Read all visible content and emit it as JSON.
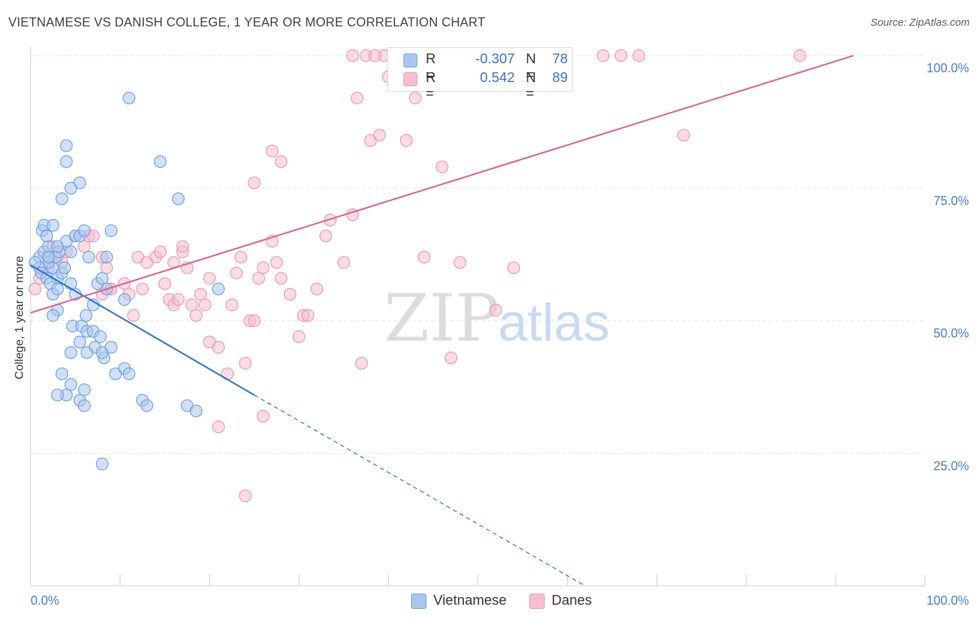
{
  "title": "VIETNAMESE VS DANISH COLLEGE, 1 YEAR OR MORE CORRELATION CHART",
  "source": "Source: ZipAtlas.com",
  "watermark": {
    "zip": "ZIP",
    "atlas": "atlas"
  },
  "colors": {
    "vietnamese_fill": "#a9c6ef",
    "vietnamese_stroke": "#6b9fe0",
    "vietnamese_line": "#2f6fd0",
    "danes_fill": "#f6bfd0",
    "danes_stroke": "#ec94b0",
    "danes_line": "#e0608a",
    "axis_label": "#4a7bd0",
    "grid": "#e3e3e3"
  },
  "legend": {
    "rows": [
      {
        "r_label": "R =",
        "r_value": "-0.307",
        "n_label": "N =",
        "n_value": "78"
      },
      {
        "r_label": "R =",
        "r_value": "0.542",
        "n_label": "N =",
        "n_value": "89"
      }
    ]
  },
  "bottom_legend": {
    "vietnamese": "Vietnamese",
    "danes": "Danes"
  },
  "chart_data": {
    "type": "scatter",
    "title": "VIETNAMESE VS DANISH COLLEGE, 1 YEAR OR MORE CORRELATION CHART",
    "xlabel": "",
    "ylabel": "College, 1 year or more",
    "xlim": [
      0,
      100
    ],
    "ylim": [
      0,
      100
    ],
    "x_tick_labels": [
      "0.0%",
      "100.0%"
    ],
    "y_tick_labels": [
      "25.0%",
      "50.0%",
      "75.0%",
      "100.0%"
    ],
    "y_ticks": [
      25,
      50,
      75,
      100
    ],
    "series": [
      {
        "name": "Vietnamese",
        "r": -0.307,
        "n": 78,
        "trend": {
          "x0": 0,
          "y0": 60.5,
          "x1": 25,
          "y1": 36.0,
          "dash_to_x": 62,
          "dash_to_y": 0
        },
        "points": [
          [
            2.5,
            60
          ],
          [
            3,
            58
          ],
          [
            3.5,
            59
          ],
          [
            2,
            61
          ],
          [
            1,
            62
          ],
          [
            1.5,
            63
          ],
          [
            2,
            64
          ],
          [
            1,
            60
          ],
          [
            0.5,
            61
          ],
          [
            1.2,
            59
          ],
          [
            2.8,
            62
          ],
          [
            3.2,
            63
          ],
          [
            4,
            65
          ],
          [
            5,
            66
          ],
          [
            5.5,
            66
          ],
          [
            6,
            67
          ],
          [
            4.5,
            63
          ],
          [
            1.8,
            58
          ],
          [
            2.2,
            57
          ],
          [
            1.3,
            67
          ],
          [
            1.5,
            68
          ],
          [
            2.5,
            68
          ],
          [
            3,
            64
          ],
          [
            3.8,
            60
          ],
          [
            6.5,
            62
          ],
          [
            8.5,
            56
          ],
          [
            10.5,
            54
          ],
          [
            4.5,
            57
          ],
          [
            7,
            53
          ],
          [
            6.2,
            51
          ],
          [
            4.7,
            49
          ],
          [
            5.7,
            49
          ],
          [
            6.3,
            48
          ],
          [
            7,
            48
          ],
          [
            7.8,
            47
          ],
          [
            5.5,
            46
          ],
          [
            7.2,
            45
          ],
          [
            4.5,
            44
          ],
          [
            6.3,
            44
          ],
          [
            8.2,
            43
          ],
          [
            8,
            44
          ],
          [
            9,
            45
          ],
          [
            3,
            52
          ],
          [
            2.5,
            51
          ],
          [
            2.5,
            55
          ],
          [
            5,
            55
          ],
          [
            9.5,
            40
          ],
          [
            10.5,
            41
          ],
          [
            11,
            40
          ],
          [
            3.5,
            40
          ],
          [
            4.5,
            38
          ],
          [
            6,
            37
          ],
          [
            4,
            36
          ],
          [
            3,
            36
          ],
          [
            5.5,
            35
          ],
          [
            6,
            34
          ],
          [
            12.5,
            35
          ],
          [
            13,
            34
          ],
          [
            17.5,
            34
          ],
          [
            18.5,
            33
          ],
          [
            8,
            23
          ],
          [
            5.5,
            76
          ],
          [
            4,
            83
          ],
          [
            4.5,
            75
          ],
          [
            3.5,
            73
          ],
          [
            4,
            80
          ],
          [
            11,
            92
          ],
          [
            14.5,
            80
          ],
          [
            16.5,
            73
          ],
          [
            21,
            56
          ],
          [
            7.5,
            57
          ],
          [
            8,
            58
          ],
          [
            9,
            67
          ],
          [
            2,
            62
          ],
          [
            1.8,
            66
          ],
          [
            3,
            56
          ],
          [
            2,
            62
          ],
          [
            8.5,
            62
          ]
        ]
      },
      {
        "name": "Danes",
        "r": 0.542,
        "n": 89,
        "trend": {
          "x0": 0,
          "y0": 51.5,
          "x1": 92,
          "y1": 100
        },
        "points": [
          [
            0.5,
            56
          ],
          [
            1,
            58
          ],
          [
            2,
            60
          ],
          [
            3,
            62
          ],
          [
            2.5,
            64
          ],
          [
            3.5,
            61
          ],
          [
            4,
            63
          ],
          [
            5,
            66
          ],
          [
            6,
            64
          ],
          [
            6.5,
            66
          ],
          [
            7,
            66
          ],
          [
            8,
            62
          ],
          [
            8.5,
            60
          ],
          [
            9,
            56
          ],
          [
            10.5,
            57
          ],
          [
            11,
            55
          ],
          [
            11.5,
            51
          ],
          [
            12,
            62
          ],
          [
            12.5,
            56
          ],
          [
            13,
            61
          ],
          [
            14,
            62
          ],
          [
            14.5,
            63
          ],
          [
            15,
            57
          ],
          [
            15.5,
            54
          ],
          [
            16,
            53
          ],
          [
            16.5,
            54
          ],
          [
            17,
            63
          ],
          [
            17.5,
            60
          ],
          [
            18,
            53
          ],
          [
            18.5,
            51
          ],
          [
            19,
            55
          ],
          [
            19.5,
            53
          ],
          [
            20,
            46
          ],
          [
            21,
            45
          ],
          [
            22,
            40
          ],
          [
            22.5,
            53
          ],
          [
            23,
            59
          ],
          [
            23.5,
            62
          ],
          [
            24,
            42
          ],
          [
            24.5,
            50
          ],
          [
            25,
            50
          ],
          [
            25.5,
            58
          ],
          [
            26,
            60
          ],
          [
            27,
            65
          ],
          [
            27.5,
            61
          ],
          [
            28,
            58
          ],
          [
            29,
            55
          ],
          [
            30,
            47
          ],
          [
            30.5,
            51
          ],
          [
            31,
            51
          ],
          [
            32,
            56
          ],
          [
            33,
            66
          ],
          [
            33.5,
            69
          ],
          [
            35,
            61
          ],
          [
            36,
            70
          ],
          [
            37,
            42
          ],
          [
            38,
            84
          ],
          [
            39,
            85
          ],
          [
            40,
            96
          ],
          [
            41,
            96
          ],
          [
            42,
            84
          ],
          [
            43,
            92
          ],
          [
            36.5,
            92
          ],
          [
            36,
            100
          ],
          [
            39.5,
            100
          ],
          [
            37.5,
            100
          ],
          [
            38.5,
            100
          ],
          [
            44,
            62
          ],
          [
            46,
            79
          ],
          [
            47,
            43
          ],
          [
            48,
            61
          ],
          [
            52,
            52
          ],
          [
            54,
            60
          ],
          [
            64,
            100
          ],
          [
            66,
            100
          ],
          [
            68,
            100
          ],
          [
            86,
            100
          ],
          [
            73,
            85
          ],
          [
            26,
            32
          ],
          [
            24,
            17
          ],
          [
            25,
            76
          ],
          [
            27,
            82
          ],
          [
            28,
            80
          ],
          [
            20,
            58
          ],
          [
            17,
            64
          ],
          [
            8,
            55
          ],
          [
            9,
            56
          ],
          [
            16,
            61
          ],
          [
            21,
            30
          ]
        ]
      }
    ]
  }
}
